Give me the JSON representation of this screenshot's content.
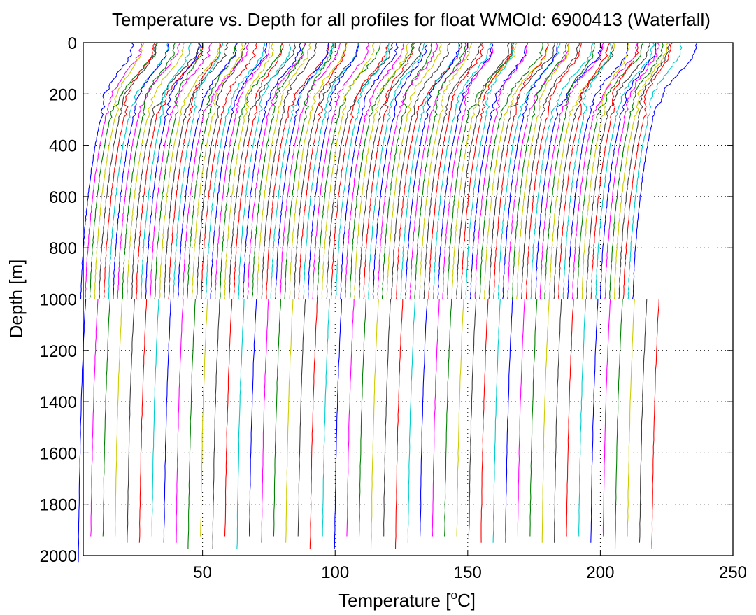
{
  "chart_data": {
    "type": "line",
    "title": "Temperature vs. Depth for all profiles for float WMOId: 6900413 (Waterfall)",
    "xlabel_main": "Temperature [",
    "xlabel_sup": "o",
    "xlabel_end": "C]",
    "ylabel": "Depth [m]",
    "xlim": [
      5,
      250
    ],
    "ylim": [
      0,
      2000
    ],
    "y_reversed": true,
    "grid": "dotted",
    "x_ticks": [
      50,
      100,
      150,
      200,
      250
    ],
    "y_ticks": [
      0,
      200,
      400,
      600,
      800,
      1000,
      1200,
      1400,
      1600,
      1800,
      2000
    ],
    "series_colors": [
      "#0000ff",
      "#ff00ff",
      "#008000",
      "#cccc00",
      "#404040",
      "#ff0000",
      "#00cccc"
    ],
    "waterfall": {
      "shallow_profiles": {
        "count": 120,
        "max_depth": 1000,
        "first_offset_deg": 0,
        "step_deg": 1.75,
        "profile_depths": [
          0,
          50,
          100,
          150,
          200,
          300,
          400,
          500,
          600,
          700,
          800,
          900,
          950,
          990,
          1000
        ],
        "profile_temps": [
          25.5,
          24.5,
          21.0,
          17.0,
          14.0,
          11.5,
          9.5,
          8.0,
          6.8,
          5.8,
          5.0,
          4.4,
          4.2,
          4.1,
          4.0
        ]
      },
      "deep_profiles": {
        "count": 48,
        "max_depth": 1975,
        "first_offset_deg": 0,
        "step_deg": 4.6,
        "profile_depths": [
          1000,
          1100,
          1200,
          1300,
          1400,
          1500,
          1600,
          1700,
          1800,
          1900,
          1975
        ],
        "profile_temps": [
          5.9,
          5.4,
          5.0,
          4.6,
          4.3,
          4.0,
          3.8,
          3.6,
          3.45,
          3.3,
          3.2
        ]
      }
    }
  }
}
